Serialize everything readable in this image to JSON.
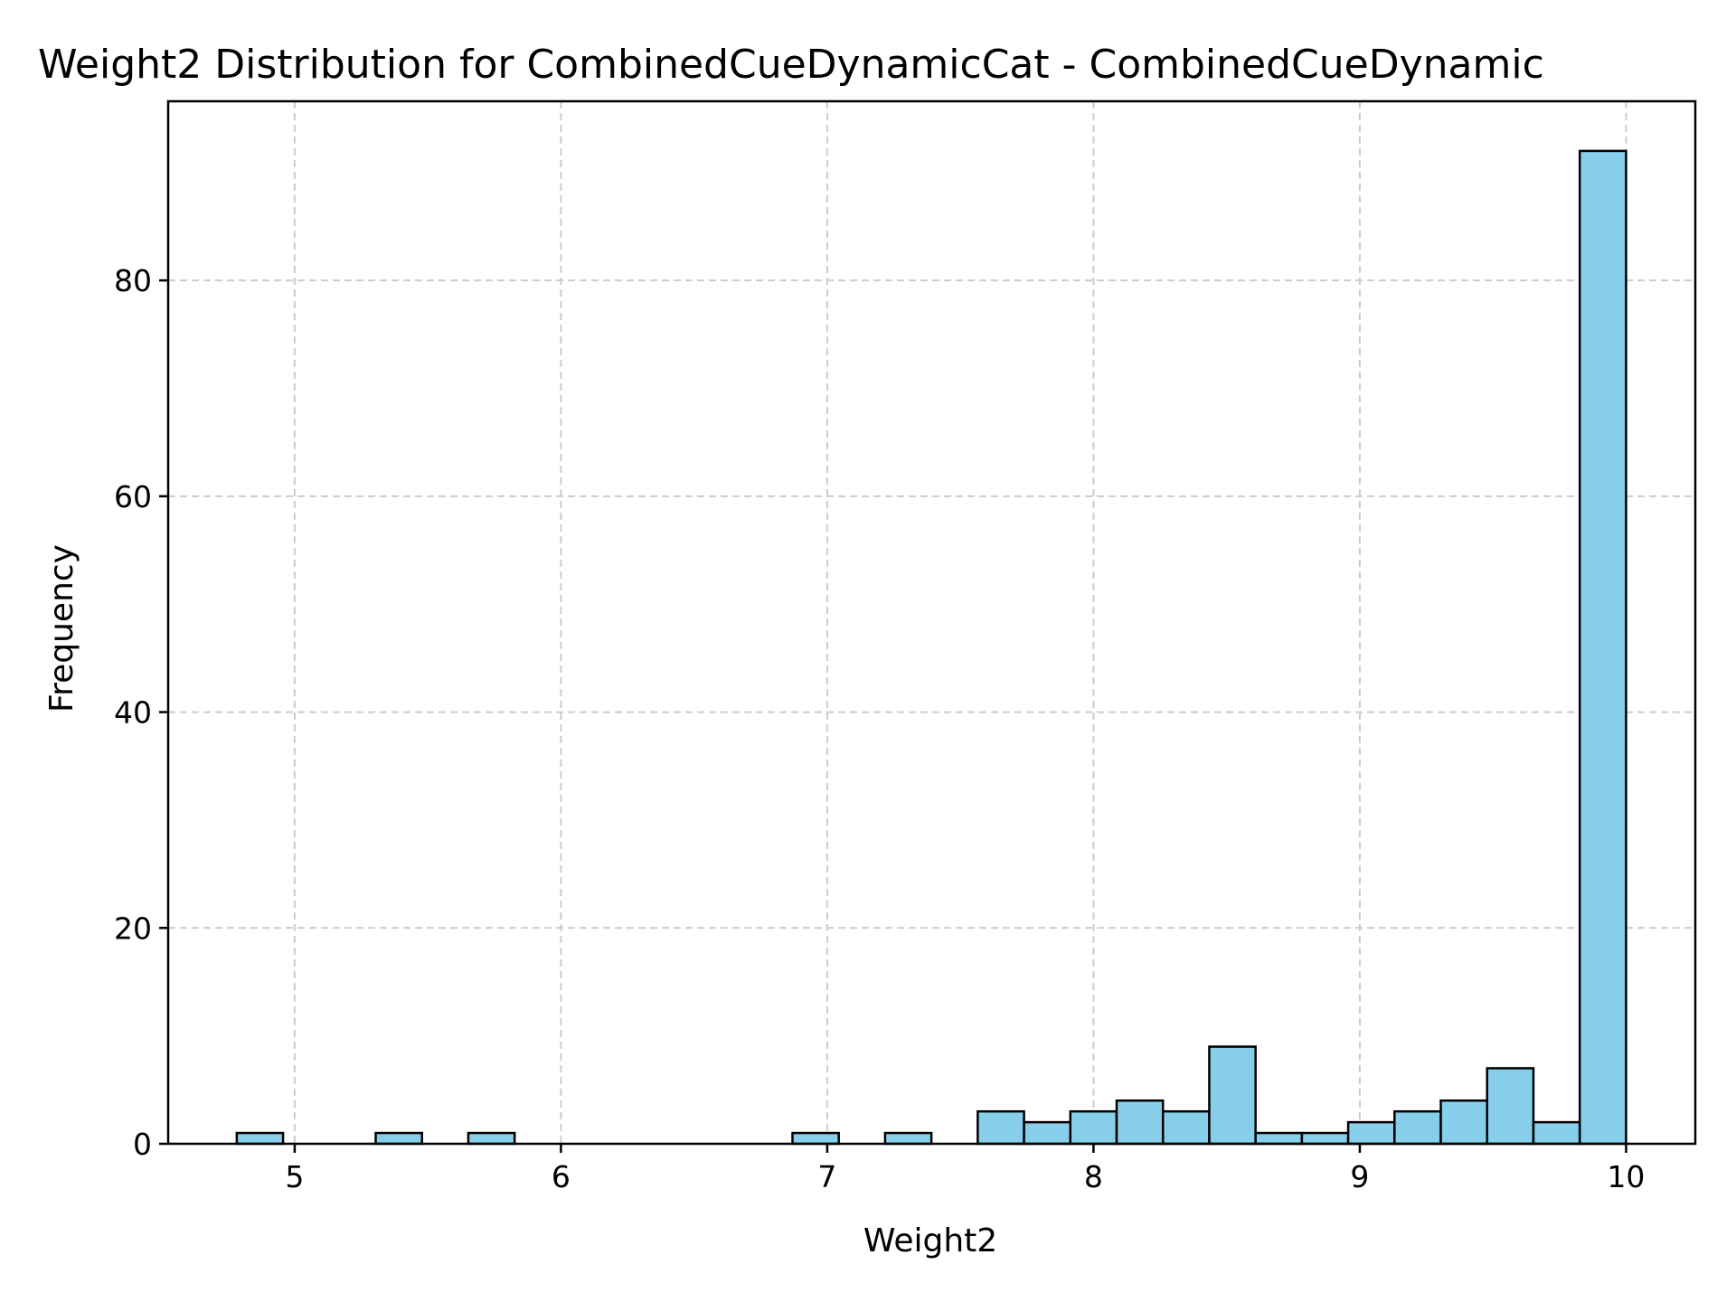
{
  "chart_data": {
    "type": "bar",
    "title": "Weight2 Distribution for CombinedCueDynamicCat - CombinedCueDynamic",
    "xlabel": "Weight2",
    "ylabel": "Frequency",
    "xlim": [
      4.525,
      10.26
    ],
    "ylim": [
      0,
      96.6
    ],
    "xticks": [
      5,
      6,
      7,
      8,
      9,
      10
    ],
    "yticks": [
      0,
      20,
      40,
      60,
      80
    ],
    "grid": true,
    "bar_color": "#87ceeb",
    "edge_color": "#000000",
    "bin_start": 4.7826,
    "bin_width": 0.17391,
    "counts": [
      1,
      0,
      0,
      1,
      0,
      1,
      0,
      0,
      0,
      0,
      0,
      0,
      1,
      0,
      1,
      0,
      3,
      2,
      3,
      4,
      3,
      9,
      1,
      1,
      2,
      3,
      4,
      7,
      2,
      92
    ],
    "marker_line_x": 10.0
  }
}
